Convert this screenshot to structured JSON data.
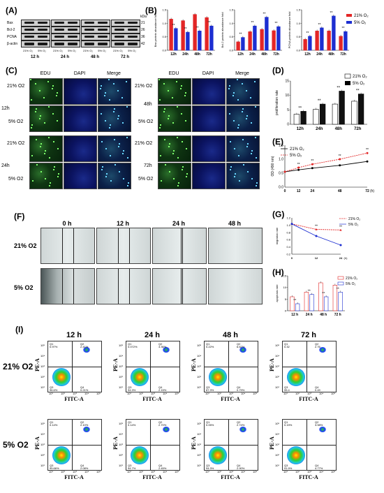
{
  "panels": {
    "A": "(A)",
    "B": "(B)",
    "C": "(C)",
    "D": "(D)",
    "E": "(E)",
    "F": "(F)",
    "G": "(G)",
    "H": "(H)",
    "I": "(I)"
  },
  "blot": {
    "proteins": [
      "Bax",
      "Bcl-2",
      "PCNA",
      "β-actin"
    ],
    "kda_title": "kDa",
    "kda": [
      "21",
      "26",
      "36",
      "42"
    ],
    "lane_pairs": [
      [
        "21% O₂",
        "5% O₂"
      ],
      [
        "21% O₂",
        "5% O₂"
      ],
      [
        "21% O₂",
        "5% O₂"
      ],
      [
        "21% O₂",
        "5% O₂"
      ]
    ],
    "times": [
      "12 h",
      "24 h",
      "48 h",
      "72 h"
    ]
  },
  "legend_b": {
    "a": "21% O₂",
    "b": "5% O₂",
    "color_a": "#e32626",
    "color_b": "#1d2fd1"
  },
  "chart_data": [
    {
      "type": "bar",
      "title": "",
      "ylabel": "Bax protein abundance fold",
      "categories": [
        "12h",
        "24h",
        "48h",
        "72h"
      ],
      "series": [
        {
          "name": "21% O₂",
          "values": [
            1.0,
            0.95,
            1.15,
            1.05
          ]
        },
        {
          "name": "5% O₂",
          "values": [
            0.7,
            0.58,
            0.62,
            0.78
          ]
        }
      ],
      "ylim": [
        0,
        1.3
      ]
    },
    {
      "type": "bar",
      "title": "",
      "ylabel": "Bcl-2 protein abundance fold",
      "categories": [
        "12h",
        "24h",
        "48h",
        "72h"
      ],
      "series": [
        {
          "name": "21% O₂",
          "values": [
            0.25,
            0.55,
            0.62,
            0.58
          ]
        },
        {
          "name": "5% O₂",
          "values": [
            0.38,
            0.72,
            0.98,
            0.7
          ]
        }
      ],
      "ylim": [
        0,
        1.2
      ]
    },
    {
      "type": "bar",
      "title": "",
      "ylabel": "PCNA protein abundance fold",
      "categories": [
        "12h",
        "24h",
        "48h",
        "72h"
      ],
      "series": [
        {
          "name": "21% O₂",
          "values": [
            0.35,
            0.62,
            0.62,
            0.45
          ]
        },
        {
          "name": "5% O₂",
          "values": [
            0.45,
            0.72,
            1.1,
            0.6
          ]
        }
      ],
      "ylim": [
        0,
        1.3
      ]
    },
    {
      "type": "bar",
      "title": "",
      "ylabel": "proliferation rate",
      "categories": [
        "12h",
        "24h",
        "48h",
        "72h"
      ],
      "series": [
        {
          "name": "21% O₂",
          "values": [
            3.5,
            5.2,
            7.0,
            8.0
          ]
        },
        {
          "name": "5% O₂",
          "values": [
            4.5,
            7.0,
            11.5,
            10.5
          ]
        }
      ],
      "ylim": [
        0,
        15
      ]
    },
    {
      "type": "line",
      "title": "",
      "ylabel": "OD (490 nm)",
      "xlabel": "(h)",
      "x": [
        0,
        12,
        24,
        48,
        72
      ],
      "series": [
        {
          "name": "21% O₂",
          "values": [
            0.55,
            0.62,
            0.68,
            0.78,
            0.92
          ]
        },
        {
          "name": "5% O₂",
          "values": [
            0.55,
            0.7,
            0.82,
            1.0,
            1.22
          ]
        }
      ],
      "ylim": [
        0,
        1.5
      ]
    },
    {
      "type": "line",
      "title": "",
      "ylabel": "migration rate",
      "xlabel": "(h)",
      "x": [
        0,
        12,
        24
      ],
      "series": [
        {
          "name": "21% O₂",
          "values": [
            1.0,
            0.82,
            0.8
          ]
        },
        {
          "name": "5% O₂",
          "values": [
            1.0,
            0.6,
            0.3
          ]
        }
      ],
      "ylim": [
        0,
        1.2
      ]
    },
    {
      "type": "bar",
      "title": "",
      "ylabel": "apoptosis rate",
      "categories": [
        "12 h",
        "24 h",
        "48 h",
        "72 h"
      ],
      "series": [
        {
          "name": "21% O₂",
          "values": [
            6,
            8,
            12,
            11
          ]
        },
        {
          "name": "5% O₂",
          "values": [
            3,
            7,
            6,
            8
          ]
        }
      ],
      "ylim": [
        0,
        15
      ]
    }
  ],
  "yticks": {
    "b1": [
      "1.5",
      "1.0",
      "0.5",
      "0.0"
    ],
    "b2": [
      "1.5",
      "1.0",
      "0.5",
      "0.0"
    ],
    "b3": [
      "1.5",
      "1.0",
      "0.5",
      "0.0"
    ],
    "d": [
      "15",
      "10",
      "5",
      "0"
    ],
    "e": [
      "1.5",
      "1.0",
      "0.5",
      "0.0"
    ],
    "g": [
      "1.2",
      "1.0",
      "0.8",
      "0.6",
      "0.4",
      "0.2"
    ],
    "h": [
      "15",
      "10",
      "5",
      "0"
    ]
  },
  "sig": "**",
  "edu": {
    "headers": [
      "EDU",
      "DAPI",
      "Merge"
    ],
    "rows_left": [
      "21% O2",
      "5% O2",
      "21% O2",
      "5% O2"
    ],
    "times_left": [
      "12h",
      "24h"
    ],
    "rows_right": [
      "21% O2",
      "5% O2",
      "21% O2",
      "5% O2"
    ],
    "times_right": [
      "48h",
      "72h"
    ]
  },
  "wound": {
    "times": [
      "0 h",
      "12 h",
      "24 h",
      "48 h"
    ],
    "rows": [
      "21% O2",
      "5% O2"
    ]
  },
  "flow": {
    "times": [
      "12 h",
      "24 h",
      "48 h",
      "72 h"
    ],
    "rows": [
      "21% O2",
      "5% O2"
    ],
    "xlabel": "FITC-A",
    "ylabel": "PE-A",
    "q": [
      "Q1",
      "Q2",
      "Q3",
      "Q4"
    ],
    "vals_21": [
      [
        "0.97%",
        "2.41%",
        "96.6%",
        "0.21%"
      ],
      [
        "0.072%",
        "3.36%",
        "94.3%",
        "2.15%"
      ],
      [
        "0.22%",
        "6.62%",
        "87.3%",
        "0.79%"
      ],
      [
        "0.32",
        "2.76",
        "95.4",
        "0.49"
      ]
    ],
    "vals_5": [
      [
        "0.14%",
        "2.10%",
        "95.66%",
        "2.08%"
      ],
      [
        "0.14%",
        "2.70%",
        "94.7%",
        "2.45%"
      ],
      [
        "0.05%",
        "2.74%",
        "94.3%",
        "2.90%"
      ],
      [
        "0.19%",
        "3.98%",
        "91.9%",
        "4.77%"
      ]
    ],
    "ticks_x": [
      "10¹",
      "10²",
      "10³",
      "10⁴",
      "10⁵"
    ],
    "ticks_y": [
      "10⁵",
      "10⁴",
      "10³",
      "10²",
      "10¹"
    ]
  }
}
